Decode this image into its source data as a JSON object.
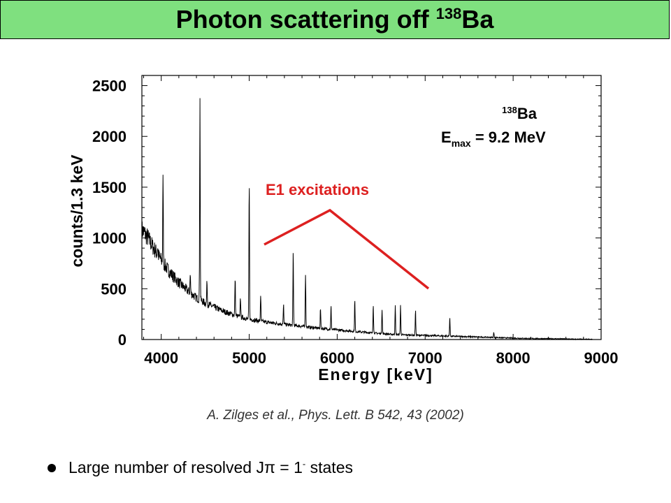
{
  "title": {
    "text": "Photon scattering off ",
    "isotope_mass": "138",
    "isotope_symbol": "Ba",
    "background": "#7fe07f"
  },
  "chart_data": {
    "type": "line",
    "xlabel": "Energy [keV]",
    "ylabel": "counts/1.3 keV",
    "xlim": [
      3780,
      9000
    ],
    "ylim": [
      0,
      2600
    ],
    "x_ticks": [
      4000,
      5000,
      6000,
      7000,
      8000,
      9000
    ],
    "y_ticks": [
      0,
      500,
      1000,
      1500,
      2000,
      2500
    ],
    "grid": false,
    "series": [
      {
        "color": "#000000",
        "x": [
          3780,
          3800,
          3850,
          3900,
          3950,
          4000,
          4100,
          4200,
          4300,
          4400,
          4500,
          4600,
          4700,
          4800,
          4900,
          5000,
          5200,
          5400,
          5600,
          5800,
          6000,
          6200,
          6400,
          6600,
          6800,
          7000,
          7200,
          7400,
          7600,
          7800,
          8000,
          8200,
          8400,
          8600,
          8700,
          8900
        ],
        "y": [
          1080,
          1060,
          1000,
          920,
          850,
          780,
          660,
          560,
          480,
          410,
          360,
          320,
          280,
          250,
          220,
          200,
          170,
          150,
          130,
          110,
          95,
          80,
          65,
          52,
          45,
          40,
          35,
          30,
          25,
          20,
          14,
          10,
          8,
          6,
          3,
          2
        ],
        "peaks": [
          {
            "x": 3960,
            "y": 920
          },
          {
            "x": 4020,
            "y": 1580
          },
          {
            "x": 4330,
            "y": 640
          },
          {
            "x": 4440,
            "y": 2400
          },
          {
            "x": 4520,
            "y": 580
          },
          {
            "x": 4840,
            "y": 610
          },
          {
            "x": 4900,
            "y": 430
          },
          {
            "x": 5000,
            "y": 1550
          },
          {
            "x": 5130,
            "y": 440
          },
          {
            "x": 5390,
            "y": 340
          },
          {
            "x": 5500,
            "y": 880
          },
          {
            "x": 5640,
            "y": 650
          },
          {
            "x": 5810,
            "y": 310
          },
          {
            "x": 5930,
            "y": 330
          },
          {
            "x": 6200,
            "y": 390
          },
          {
            "x": 6410,
            "y": 350
          },
          {
            "x": 6510,
            "y": 300
          },
          {
            "x": 6660,
            "y": 330
          },
          {
            "x": 6720,
            "y": 340
          },
          {
            "x": 6890,
            "y": 290
          },
          {
            "x": 7280,
            "y": 220
          },
          {
            "x": 7780,
            "y": 70
          }
        ]
      }
    ],
    "annotations": {
      "isotope_mass": "138",
      "isotope_symbol": "Ba",
      "emax_prefix": "E",
      "emax_sub": "max",
      "emax_value": " = 9.2 MeV",
      "e1_label": "E1 excitations",
      "e1_color": "#dd2020"
    }
  },
  "citation": "A. Zilges et al., Phys. Lett. B 542, 43 (2002)",
  "bullet": {
    "pre": "Large number of resolved J",
    "pi": "π",
    "mid": " = 1",
    "sup": "-",
    "post": "  states"
  }
}
